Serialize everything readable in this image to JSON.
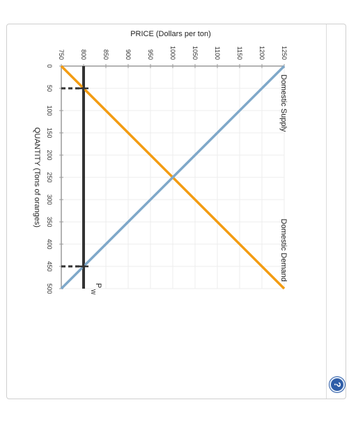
{
  "help_button": {
    "symbol": "?",
    "icon": "question-mark-icon"
  },
  "chart_data": {
    "type": "line",
    "title": "",
    "xlabel": "QUANTITY (Tons of oranges)",
    "ylabel": "PRICE (Dollars per ton)",
    "xlim": [
      0,
      500
    ],
    "ylim": [
      750,
      1250
    ],
    "x_ticks": [
      "0",
      "50",
      "100",
      "150",
      "200",
      "250",
      "300",
      "350",
      "400",
      "450",
      "500"
    ],
    "y_ticks": [
      "750",
      "800",
      "850",
      "900",
      "950",
      "1000",
      "1050",
      "1100",
      "1150",
      "1200",
      "1250"
    ],
    "grid": true,
    "rotation": "rotated 90 degrees clockwise",
    "series": [
      {
        "name": "Domestic Demand",
        "color": "#f39c12",
        "x": [
          0,
          500
        ],
        "y": [
          750,
          1250
        ]
      },
      {
        "name": "Domestic Supply",
        "color": "#7fa8c9",
        "x": [
          0,
          500
        ],
        "y": [
          1250,
          750
        ]
      }
    ],
    "world_price": {
      "label": "P",
      "subscript": "W",
      "value": 800,
      "color": "#333333"
    },
    "markers": [
      {
        "x": 50,
        "y": 800
      },
      {
        "x": 450,
        "y": 800
      }
    ]
  }
}
